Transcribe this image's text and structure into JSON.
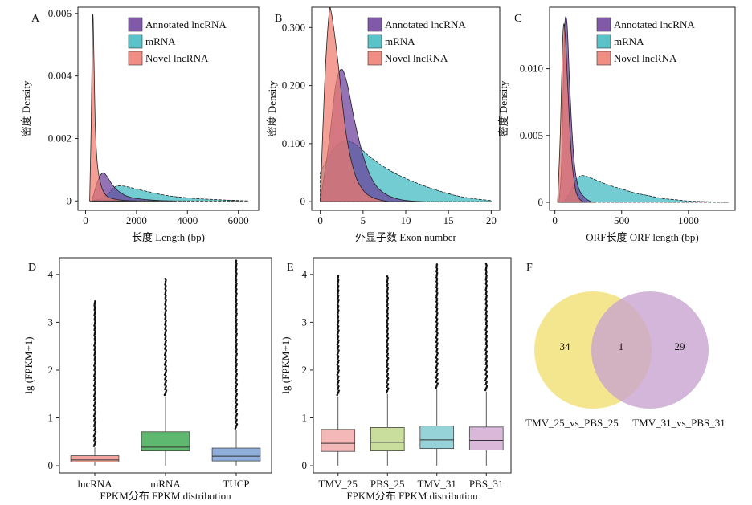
{
  "figure": {
    "panel_labels": [
      "A",
      "B",
      "C",
      "D",
      "E",
      "F"
    ],
    "legend_density": [
      "Annotated lncRNA",
      "mRNA",
      "Novel lncRNA"
    ],
    "colors": {
      "annotated_lncRNA": "#6A3D9A",
      "mRNA": "#3DB8BF",
      "novel_lncRNA": "#EF7A6E",
      "box_lncRNA": "#F2A59C",
      "box_mRNA": "#5FB86F",
      "box_TUCP": "#8FAEDB",
      "box_TMV_25": "#F5B8B9",
      "box_PBS_25": "#C9DE9C",
      "box_TMV_31": "#95D3D9",
      "box_PBS_31": "#D9B8D9",
      "venn_left": "#F2E27A",
      "venn_right": "#C8A2CF"
    }
  },
  "chart_data": [
    {
      "panel": "A",
      "type": "area",
      "xlabel": "长度 Length (bp)",
      "ylabel": "密度 Density",
      "xticks": [
        "0",
        "2000",
        "4000",
        "6000"
      ],
      "yticks": [
        "0",
        "0.002",
        "0.004",
        "0.006"
      ],
      "xlim": [
        -300,
        6800
      ],
      "ylim": [
        -0.0003,
        0.0062
      ],
      "legend": [
        "Annotated lncRNA",
        "mRNA",
        "Novel lncRNA"
      ],
      "series": [
        {
          "name": "mRNA",
          "x": [
            250,
            600,
            900,
            1200,
            1600,
            2000,
            2500,
            3000,
            3500,
            4000,
            4500,
            5000,
            5500,
            6000,
            6400
          ],
          "y": [
            0,
            8e-05,
            0.00024,
            0.00047,
            0.00046,
            0.00038,
            0.00029,
            0.0002,
            0.00014,
            0.0001,
            7e-05,
            5e-05,
            3e-05,
            1.5e-05,
            0
          ]
        },
        {
          "name": "Annotated lncRNA",
          "x": [
            250,
            400,
            550,
            700,
            850,
            1000,
            1200,
            1500,
            1800,
            2200,
            2600,
            3000,
            3500
          ],
          "y": [
            0,
            0.00045,
            0.00078,
            0.0009,
            0.00078,
            0.00058,
            0.00038,
            0.0002,
            0.00011,
            6e-05,
            3e-05,
            1e-05,
            0
          ]
        },
        {
          "name": "Novel lncRNA",
          "x": [
            160,
            220,
            270,
            300,
            330,
            380,
            450,
            550,
            700,
            900,
            1200,
            1500,
            2000
          ],
          "y": [
            0,
            0.0025,
            0.0056,
            0.0058,
            0.0045,
            0.0025,
            0.0013,
            0.0007,
            0.0003,
            0.00012,
            5e-05,
            2e-05,
            0
          ]
        }
      ]
    },
    {
      "panel": "B",
      "type": "area",
      "xlabel": "外显子数 Exon number",
      "ylabel": "密度 Density",
      "xticks": [
        "0",
        "5",
        "10",
        "15",
        "20"
      ],
      "yticks": [
        "0",
        "0.100",
        "0.200",
        "0.300"
      ],
      "xlim": [
        -1,
        21
      ],
      "ylim": [
        -0.015,
        0.335
      ],
      "legend": [
        "Annotated lncRNA",
        "mRNA",
        "Novel lncRNA"
      ],
      "series": [
        {
          "name": "mRNA",
          "x": [
            0,
            1,
            2,
            3,
            4,
            5,
            6,
            8,
            10,
            12,
            14,
            16,
            18,
            20
          ],
          "y": [
            0.05,
            0.078,
            0.098,
            0.105,
            0.1,
            0.088,
            0.075,
            0.055,
            0.04,
            0.028,
            0.018,
            0.01,
            0.005,
            0.002
          ]
        },
        {
          "name": "Annotated lncRNA",
          "x": [
            0,
            1,
            1.8,
            2.5,
            3.2,
            4,
            5,
            6,
            7,
            8,
            9,
            10,
            12
          ],
          "y": [
            0,
            0.1,
            0.2,
            0.228,
            0.2,
            0.14,
            0.08,
            0.04,
            0.02,
            0.01,
            0.005,
            0.002,
            0
          ]
        },
        {
          "name": "Novel lncRNA",
          "x": [
            0,
            0.5,
            1,
            1.3,
            2,
            3,
            4,
            5,
            6,
            7,
            8
          ],
          "y": [
            0,
            0.2,
            0.32,
            0.325,
            0.25,
            0.12,
            0.05,
            0.02,
            0.008,
            0.003,
            0
          ]
        }
      ]
    },
    {
      "panel": "C",
      "type": "area",
      "xlabel": "ORF长度 ORF length (bp)",
      "ylabel": "密度 Density",
      "xticks": [
        "0",
        "500",
        "1000"
      ],
      "yticks": [
        "0",
        "0.005",
        "0.010"
      ],
      "xlim": [
        -40,
        1350
      ],
      "ylim": [
        -0.0006,
        0.0146
      ],
      "legend": [
        "Annotated lncRNA",
        "mRNA",
        "Novel lncRNA"
      ],
      "series": [
        {
          "name": "mRNA",
          "x": [
            40,
            80,
            120,
            160,
            200,
            250,
            300,
            400,
            500,
            600,
            700,
            800,
            900,
            1000,
            1100,
            1200,
            1300
          ],
          "y": [
            0,
            0.0002,
            0.0009,
            0.0017,
            0.002,
            0.0019,
            0.0017,
            0.0013,
            0.001,
            0.0007,
            0.0005,
            0.0003,
            0.0002,
            0.0001,
            6e-05,
            3e-05,
            0
          ]
        },
        {
          "name": "Annotated lncRNA",
          "x": [
            30,
            50,
            70,
            90,
            110,
            130,
            150,
            180,
            220,
            260,
            300
          ],
          "y": [
            0,
            0.003,
            0.0125,
            0.0135,
            0.009,
            0.005,
            0.0025,
            0.001,
            0.0004,
            0.0001,
            0
          ]
        },
        {
          "name": "Novel lncRNA",
          "x": [
            20,
            40,
            60,
            75,
            95,
            120,
            150,
            180,
            220
          ],
          "y": [
            0,
            0.005,
            0.0125,
            0.0128,
            0.009,
            0.004,
            0.0012,
            0.0003,
            0
          ]
        }
      ]
    },
    {
      "panel": "D",
      "type": "box",
      "xlabel": "FPKM分布 FPKM distribution",
      "ylabel": "lg (FPKM+1)",
      "yticks": [
        "0",
        "1",
        "2",
        "3",
        "4"
      ],
      "ylim": [
        -0.15,
        4.35
      ],
      "categories": [
        "lncRNA",
        "mRNA",
        "TUCP"
      ],
      "boxes": [
        {
          "name": "lncRNA",
          "min": 0,
          "q1": 0.08,
          "median": 0.12,
          "q3": 0.21,
          "max": 0.38,
          "outlier_max": 3.44
        },
        {
          "name": "mRNA",
          "min": 0,
          "q1": 0.31,
          "median": 0.39,
          "q3": 0.71,
          "max": 1.45,
          "outlier_max": 3.92
        },
        {
          "name": "TUCP",
          "min": 0,
          "q1": 0.1,
          "median": 0.2,
          "q3": 0.37,
          "max": 0.75,
          "outlier_max": 4.3
        }
      ]
    },
    {
      "panel": "E",
      "type": "box",
      "xlabel": "FPKM分布 FPKM distribution",
      "ylabel": "lg (FPKM+1)",
      "yticks": [
        "0",
        "1",
        "2",
        "3",
        "4"
      ],
      "ylim": [
        -0.15,
        4.35
      ],
      "categories": [
        "TMV_25",
        "PBS_25",
        "TMV_31",
        "PBS_31"
      ],
      "boxes": [
        {
          "name": "TMV_25",
          "min": 0,
          "q1": 0.3,
          "median": 0.47,
          "q3": 0.76,
          "max": 1.45,
          "outlier_max": 3.98
        },
        {
          "name": "PBS_25",
          "min": 0,
          "q1": 0.31,
          "median": 0.49,
          "q3": 0.8,
          "max": 1.5,
          "outlier_max": 3.98
        },
        {
          "name": "TMV_31",
          "min": 0,
          "q1": 0.36,
          "median": 0.54,
          "q3": 0.83,
          "max": 1.6,
          "outlier_max": 4.22
        },
        {
          "name": "PBS_31",
          "min": 0,
          "q1": 0.33,
          "median": 0.53,
          "q3": 0.81,
          "max": 1.55,
          "outlier_max": 4.22
        }
      ]
    },
    {
      "panel": "F",
      "type": "venn",
      "sets": [
        {
          "name": "TMV_25_vs_PBS_25",
          "only": "34"
        },
        {
          "name": "TMV_31_vs_PBS_31",
          "only": "29"
        }
      ],
      "intersection": "1"
    }
  ]
}
